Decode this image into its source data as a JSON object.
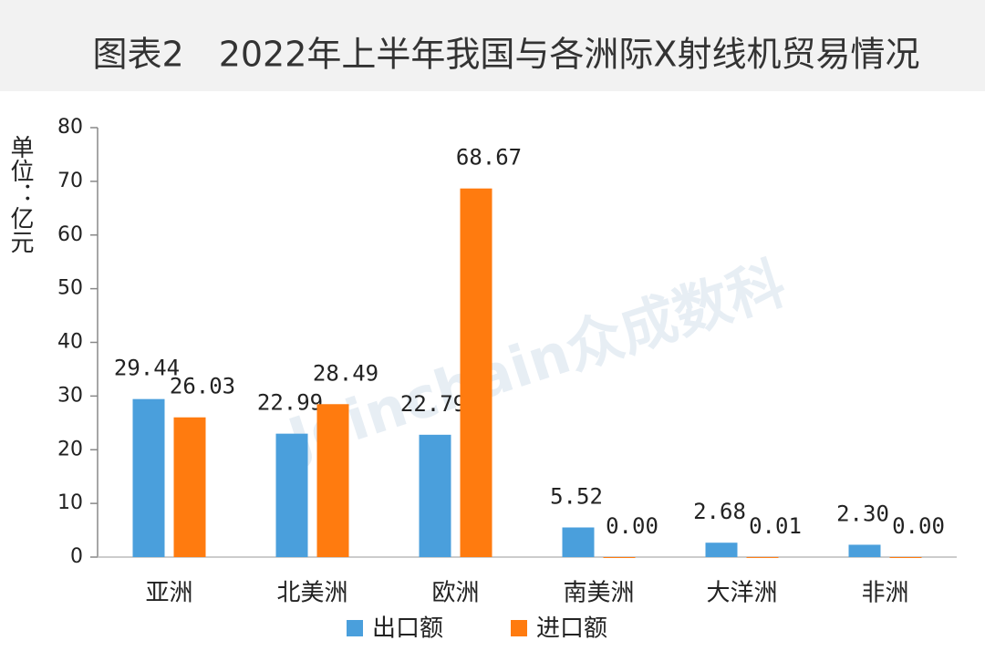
{
  "chart_data": {
    "type": "bar",
    "title": "图表2　2022年上半年我国与各洲际X射线机贸易情况",
    "y_label": "单位：亿元",
    "watermark": "Joinchain众成数科",
    "categories": [
      "亚洲",
      "北美洲",
      "欧洲",
      "南美洲",
      "大洋洲",
      "非洲"
    ],
    "series": [
      {
        "name": "出口额",
        "color": "#4a9fdc",
        "values": [
          29.44,
          22.99,
          22.79,
          5.52,
          2.68,
          2.3
        ],
        "value_labels": [
          "29.44",
          "22.99",
          "22.79",
          "5.52",
          "2.68",
          "2.30"
        ]
      },
      {
        "name": "进口额",
        "color": "#ff7b0f",
        "values": [
          26.03,
          28.49,
          68.67,
          0,
          0.01,
          0
        ],
        "value_labels": [
          "26.03",
          "28.49",
          "68.67",
          "0.00",
          "0.01",
          "0.00"
        ]
      }
    ],
    "ylim": [
      0,
      80
    ],
    "yticks": [
      0,
      10,
      20,
      30,
      40,
      50,
      60,
      70,
      80
    ],
    "grid": false,
    "legend": "bottom"
  }
}
